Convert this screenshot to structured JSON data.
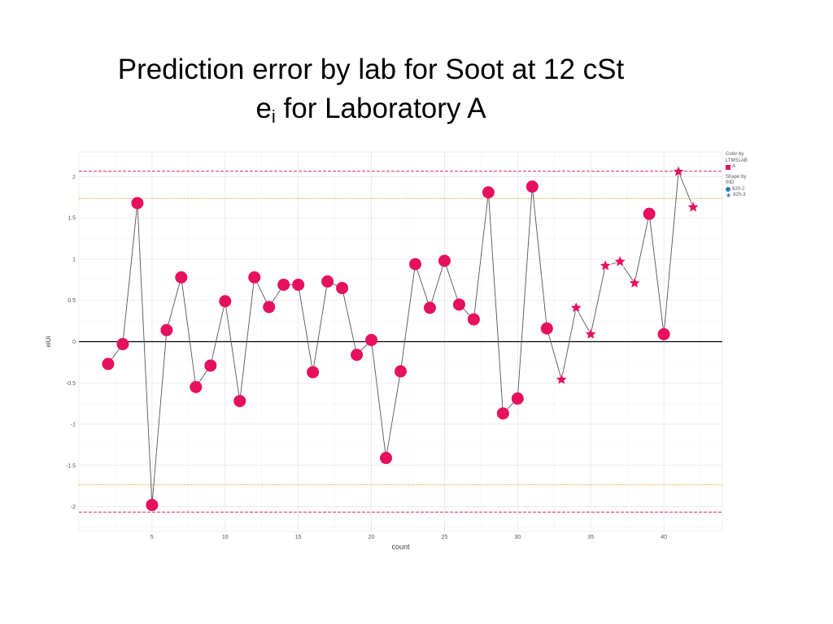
{
  "slide": {
    "title_line1": "Prediction error by lab for Soot at 12 cSt",
    "title_line2_base": "e",
    "title_line2_sub": "i",
    "title_line2_rest": " for Laboratory A"
  },
  "legend": {
    "color_title": "Color by LTMSLAB",
    "color_items": [
      "A"
    ],
    "shape_title": "Shape by IND",
    "shape_items": [
      "820-2",
      "820-3"
    ]
  },
  "colors": {
    "marker": "#e6105f",
    "line": "#555555",
    "zero_line": "#000000",
    "inner_limit": "#f0a030",
    "outer_limit": "#d6246e",
    "legend_blue": "#2e78b7"
  },
  "chart_data": {
    "type": "scatter",
    "title": "",
    "xlabel": "count",
    "ylabel": "eiUi",
    "xlim": [
      0,
      44
    ],
    "ylim": [
      -2.3,
      2.3
    ],
    "xticks": [
      5,
      10,
      15,
      20,
      25,
      30,
      35,
      40
    ],
    "yticks": [
      -2,
      -1.5,
      -1,
      -0.5,
      0,
      0.5,
      1,
      1.5,
      2
    ],
    "grid": true,
    "legend_position": "right",
    "reference_lines": [
      {
        "y": 2.066,
        "style": "dashed",
        "color": "outer"
      },
      {
        "y": 1.735,
        "style": "dotted",
        "color": "inner"
      },
      {
        "y": 0,
        "style": "solid",
        "color": "zero"
      },
      {
        "y": -1.735,
        "style": "dotted",
        "color": "inner"
      },
      {
        "y": -2.066,
        "style": "dashed",
        "color": "outer"
      }
    ],
    "series": [
      {
        "name": "820-2",
        "shape": "circle",
        "x": [
          2,
          3,
          4,
          5,
          6,
          7,
          8,
          9,
          10,
          11,
          12,
          13,
          14,
          15,
          16,
          17,
          18,
          19,
          20,
          21,
          22,
          23,
          24,
          25,
          26,
          27,
          28,
          29,
          30,
          31,
          32,
          39,
          40
        ],
        "y": [
          -0.27,
          -0.03,
          1.68,
          -1.98,
          0.14,
          0.78,
          -0.55,
          -0.29,
          0.49,
          -0.72,
          0.78,
          0.42,
          0.69,
          0.69,
          -0.37,
          0.73,
          0.65,
          -0.16,
          0.02,
          -1.41,
          -0.36,
          0.94,
          0.41,
          0.98,
          0.45,
          0.27,
          1.81,
          -0.87,
          -0.69,
          1.88,
          0.16,
          1.55,
          0.09
        ]
      },
      {
        "name": "820-3",
        "shape": "star",
        "x": [
          33,
          34,
          35,
          36,
          37,
          38,
          41,
          42
        ],
        "y": [
          -0.46,
          0.41,
          0.09,
          0.92,
          0.97,
          0.71,
          2.06,
          1.63
        ]
      }
    ],
    "path_order": [
      2,
      3,
      4,
      5,
      6,
      7,
      8,
      9,
      10,
      11,
      12,
      13,
      14,
      15,
      16,
      17,
      18,
      19,
      20,
      21,
      22,
      23,
      24,
      25,
      26,
      27,
      28,
      29,
      30,
      31,
      32,
      33,
      34,
      35,
      36,
      37,
      38,
      39,
      40,
      41,
      42
    ]
  }
}
